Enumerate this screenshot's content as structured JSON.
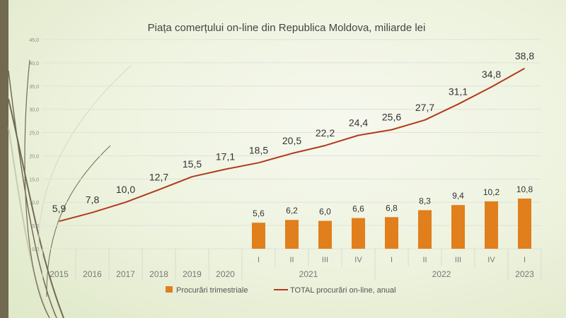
{
  "chart_data": {
    "type": "bar+line",
    "title": "Piața comerțului on-line din Republica Moldova, miliarde lei",
    "categories": [
      "2015",
      "2016",
      "2017",
      "2018",
      "2019",
      "2020",
      "I",
      "II",
      "III",
      "IV",
      "I",
      "II",
      "III",
      "IV",
      "I"
    ],
    "groups": [
      {
        "label": "2021",
        "from": 6,
        "to": 9
      },
      {
        "label": "2022",
        "from": 10,
        "to": 13
      },
      {
        "label": "2023",
        "from": 14,
        "to": 14
      }
    ],
    "series": [
      {
        "name": "Procurări trimestriale",
        "type": "bar",
        "color": "#e07f1c",
        "values": [
          null,
          null,
          null,
          null,
          null,
          null,
          5.6,
          6.2,
          6.0,
          6.6,
          6.8,
          8.3,
          9.4,
          10.2,
          10.8
        ],
        "labels": [
          "",
          "",
          "",
          "",
          "",
          "",
          "5,6",
          "6,2",
          "6,0",
          "6,6",
          "6,8",
          "8,3",
          "9,4",
          "10,2",
          "10,8"
        ]
      },
      {
        "name": "TOTAL procurări on-line, anual",
        "type": "line",
        "color": "#b23a1c",
        "values": [
          5.9,
          7.8,
          10.0,
          12.7,
          15.5,
          17.1,
          18.5,
          20.5,
          22.2,
          24.4,
          25.6,
          27.7,
          31.1,
          34.8,
          38.8
        ],
        "labels": [
          "5,9",
          "7,8",
          "10,0",
          "12,7",
          "15,5",
          "17,1",
          "18,5",
          "20,5",
          "22,2",
          "24,4",
          "25,6",
          "27,7",
          "31,1",
          "34,8",
          "38,8"
        ]
      }
    ],
    "ylim": [
      0,
      45
    ],
    "yticks": [
      "0,0",
      "5,0",
      "10,0",
      "15,0",
      "20,0",
      "25,0",
      "30,0",
      "35,0",
      "40,0",
      "45,0"
    ],
    "grid": true,
    "legend": "bottom"
  }
}
